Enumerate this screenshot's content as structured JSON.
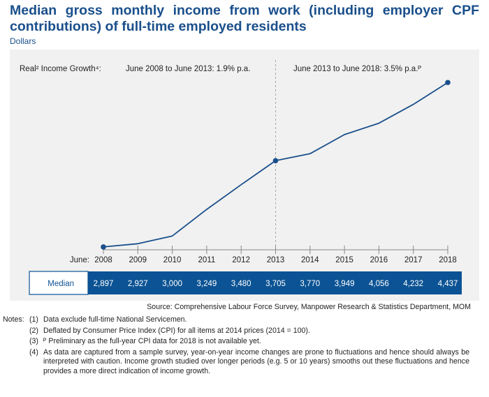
{
  "title": "Median gross monthly income from work (including employer CPF contributions) of full-time employed residents",
  "subtitle": "Dollars",
  "chart_data": {
    "type": "line",
    "x_prefix": "June:",
    "x": [
      "2008",
      "2009",
      "2010",
      "2011",
      "2012",
      "2013",
      "2014",
      "2015",
      "2016",
      "2017",
      "2018"
    ],
    "series": [
      {
        "name": "Median",
        "values": [
          2897,
          2927,
          3000,
          3249,
          3480,
          3705,
          3770,
          3949,
          4056,
          4232,
          4437
        ]
      }
    ],
    "value_labels": [
      "2,897",
      "2,927",
      "3,000",
      "3,249",
      "3,480",
      "3,705",
      "3,770",
      "3,949",
      "4,056",
      "4,232",
      "4,437"
    ],
    "markers_on": [
      "2008",
      "2013",
      "2018"
    ],
    "divider_at": "2013",
    "growth_label": "Real² Income Growth⁴:",
    "periods": [
      {
        "label": "June 2008 to June 2013: 1.9% p.a."
      },
      {
        "label": "June 2013 to June 2018: 3.5% p.a.ᴾ"
      }
    ],
    "ylim": [
      2400,
      4700
    ],
    "grid": false,
    "legend": "none",
    "line_color": "#1a4f8b",
    "table_color": "#0b5394"
  },
  "source": "Source: Comprehensive Labour Force Survey, Manpower Research & Statistics Department, MOM",
  "notes_label": "Notes:",
  "notes": [
    {
      "num": "(1)",
      "text": "Data exclude full-time National Servicemen."
    },
    {
      "num": "(2)",
      "text": "Deflated by Consumer Price Index (CPI) for all items at 2014 prices (2014 = 100)."
    },
    {
      "num": "(3)",
      "text": "ᴾ Preliminary as the full-year CPI data for 2018 is not available yet."
    },
    {
      "num": "(4)",
      "text": "As data are captured from a sample survey, year-on-year income changes are prone to fluctuations and hence should always be interpreted with caution. Income growth studied over longer periods (e.g. 5 or 10 years) smooths out these fluctuations and hence provides a more direct indication of income growth."
    }
  ]
}
